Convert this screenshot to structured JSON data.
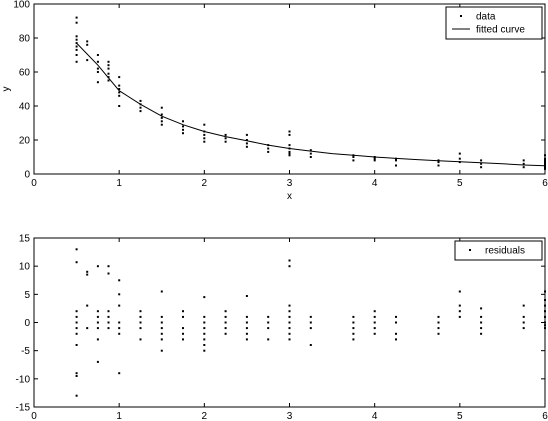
{
  "chart_data": [
    {
      "type": "scatter",
      "xlabel": "x",
      "ylabel": "y",
      "xlim": [
        0,
        6
      ],
      "ylim": [
        0,
        100
      ],
      "xticks": [
        0,
        1,
        2,
        3,
        4,
        5,
        6
      ],
      "yticks": [
        0,
        20,
        40,
        60,
        80,
        100
      ],
      "legend_position": "top-right",
      "grid": false,
      "series": [
        {
          "name": "data",
          "kind": "points",
          "points": [
            [
              0.5,
              92
            ],
            [
              0.5,
              89
            ],
            [
              0.5,
              81
            ],
            [
              0.5,
              79
            ],
            [
              0.5,
              77
            ],
            [
              0.5,
              75
            ],
            [
              0.5,
              73
            ],
            [
              0.5,
              70
            ],
            [
              0.5,
              66
            ],
            [
              0.625,
              78
            ],
            [
              0.625,
              76
            ],
            [
              0.625,
              67
            ],
            [
              0.75,
              70
            ],
            [
              0.75,
              66
            ],
            [
              0.75,
              62
            ],
            [
              0.75,
              60
            ],
            [
              0.75,
              54
            ],
            [
              0.875,
              66
            ],
            [
              0.875,
              64
            ],
            [
              0.875,
              62
            ],
            [
              0.875,
              59
            ],
            [
              0.875,
              57
            ],
            [
              0.875,
              55
            ],
            [
              1,
              57
            ],
            [
              1,
              52
            ],
            [
              1,
              50
            ],
            [
              1,
              48
            ],
            [
              1,
              46
            ],
            [
              1,
              40
            ],
            [
              1.25,
              43
            ],
            [
              1.25,
              41
            ],
            [
              1.25,
              39
            ],
            [
              1.25,
              37
            ],
            [
              1.5,
              39
            ],
            [
              1.5,
              35
            ],
            [
              1.5,
              33
            ],
            [
              1.5,
              31
            ],
            [
              1.5,
              29
            ],
            [
              1.75,
              31
            ],
            [
              1.75,
              28
            ],
            [
              1.75,
              26
            ],
            [
              1.75,
              24
            ],
            [
              2,
              29
            ],
            [
              2,
              25
            ],
            [
              2,
              23
            ],
            [
              2,
              21
            ],
            [
              2,
              19
            ],
            [
              2.25,
              23
            ],
            [
              2.25,
              21
            ],
            [
              2.25,
              19
            ],
            [
              2.5,
              23
            ],
            [
              2.5,
              20
            ],
            [
              2.5,
              18
            ],
            [
              2.5,
              16
            ],
            [
              2.75,
              17
            ],
            [
              2.75,
              15
            ],
            [
              2.75,
              13
            ],
            [
              3,
              25
            ],
            [
              3,
              23
            ],
            [
              3,
              17
            ],
            [
              3,
              15
            ],
            [
              3,
              13
            ],
            [
              3,
              12
            ],
            [
              3,
              11
            ],
            [
              3.25,
              14
            ],
            [
              3.25,
              12
            ],
            [
              3.25,
              10
            ],
            [
              3.75,
              11
            ],
            [
              3.75,
              10
            ],
            [
              3.75,
              8
            ],
            [
              4,
              10
            ],
            [
              4,
              9
            ],
            [
              4,
              8
            ],
            [
              4.25,
              9
            ],
            [
              4.25,
              8
            ],
            [
              4.25,
              5
            ],
            [
              4.75,
              8
            ],
            [
              4.75,
              7
            ],
            [
              4.75,
              5
            ],
            [
              5,
              12
            ],
            [
              5,
              9
            ],
            [
              5,
              7
            ],
            [
              5.25,
              8
            ],
            [
              5.25,
              6
            ],
            [
              5.25,
              4
            ],
            [
              5.75,
              8
            ],
            [
              5.75,
              6
            ],
            [
              5.75,
              4
            ],
            [
              6,
              11
            ],
            [
              6,
              9
            ],
            [
              6,
              8
            ],
            [
              6,
              7
            ],
            [
              6,
              6
            ],
            [
              6,
              5
            ],
            [
              6,
              4
            ],
            [
              6,
              3
            ]
          ]
        },
        {
          "name": "fitted curve",
          "kind": "line",
          "x": [
            0.5,
            0.75,
            1,
            1.25,
            1.5,
            1.75,
            2,
            2.25,
            2.5,
            2.75,
            3,
            3.25,
            3.5,
            3.75,
            4,
            4.25,
            4.5,
            4.75,
            5,
            5.25,
            5.5,
            5.75,
            6
          ],
          "y": [
            77,
            64,
            49,
            41,
            34,
            29,
            25,
            22,
            19.5,
            17,
            15,
            13.5,
            12,
            11,
            10,
            9.2,
            8.5,
            7.8,
            7.2,
            6.6,
            6,
            5.3,
            4.8
          ]
        }
      ]
    },
    {
      "type": "scatter",
      "xlabel": "",
      "ylabel": "",
      "xlim": [
        0,
        6
      ],
      "ylim": [
        -15,
        15
      ],
      "xticks": [
        0,
        1,
        2,
        3,
        4,
        5,
        6
      ],
      "yticks": [
        -15,
        -10,
        -5,
        0,
        5,
        10,
        15
      ],
      "legend_position": "top-right",
      "grid": false,
      "series": [
        {
          "name": "residuals",
          "kind": "points",
          "points": [
            [
              0.5,
              13
            ],
            [
              0.5,
              10.7
            ],
            [
              0.5,
              2
            ],
            [
              0.5,
              1
            ],
            [
              0.5,
              0
            ],
            [
              0.5,
              -1
            ],
            [
              0.5,
              -2
            ],
            [
              0.5,
              -4
            ],
            [
              0.5,
              -9
            ],
            [
              0.5,
              -9.5
            ],
            [
              0.5,
              -13
            ],
            [
              0.625,
              9
            ],
            [
              0.625,
              8.5
            ],
            [
              0.625,
              3
            ],
            [
              0.625,
              -1
            ],
            [
              0.75,
              10
            ],
            [
              0.75,
              2
            ],
            [
              0.75,
              1
            ],
            [
              0.75,
              0
            ],
            [
              0.75,
              -1
            ],
            [
              0.75,
              -3
            ],
            [
              0.75,
              -7
            ],
            [
              0.875,
              10
            ],
            [
              0.875,
              8.7
            ],
            [
              0.875,
              2
            ],
            [
              0.875,
              1
            ],
            [
              0.875,
              0
            ],
            [
              0.875,
              -1
            ],
            [
              1,
              7.5
            ],
            [
              1,
              5
            ],
            [
              1,
              3
            ],
            [
              1,
              0
            ],
            [
              1,
              -1
            ],
            [
              1,
              -2
            ],
            [
              1,
              -9
            ],
            [
              1.25,
              2
            ],
            [
              1.25,
              1
            ],
            [
              1.25,
              0
            ],
            [
              1.25,
              -1
            ],
            [
              1.25,
              -3
            ],
            [
              1.5,
              5.5
            ],
            [
              1.5,
              1
            ],
            [
              1.5,
              0
            ],
            [
              1.5,
              -1
            ],
            [
              1.5,
              -2
            ],
            [
              1.5,
              -3
            ],
            [
              1.5,
              -5
            ],
            [
              1.75,
              2
            ],
            [
              1.75,
              1
            ],
            [
              1.75,
              -1
            ],
            [
              1.75,
              -2
            ],
            [
              1.75,
              -3
            ],
            [
              2,
              4.5
            ],
            [
              2,
              1
            ],
            [
              2,
              0
            ],
            [
              2,
              -1
            ],
            [
              2,
              -2
            ],
            [
              2,
              -3
            ],
            [
              2,
              -4
            ],
            [
              2,
              -5
            ],
            [
              2.25,
              2
            ],
            [
              2.25,
              1
            ],
            [
              2.25,
              0
            ],
            [
              2.25,
              -1
            ],
            [
              2.25,
              -2
            ],
            [
              2.5,
              4.7
            ],
            [
              2.5,
              1
            ],
            [
              2.5,
              0
            ],
            [
              2.5,
              -1
            ],
            [
              2.5,
              -2
            ],
            [
              2.5,
              -3
            ],
            [
              2.75,
              1
            ],
            [
              2.75,
              0
            ],
            [
              2.75,
              -1
            ],
            [
              2.75,
              -3
            ],
            [
              3,
              11
            ],
            [
              3,
              10
            ],
            [
              3,
              3
            ],
            [
              3,
              2
            ],
            [
              3,
              1
            ],
            [
              3,
              0
            ],
            [
              3,
              -1
            ],
            [
              3,
              -2
            ],
            [
              3,
              -3
            ],
            [
              3.25,
              1
            ],
            [
              3.25,
              0
            ],
            [
              3.25,
              -1
            ],
            [
              3.25,
              -4
            ],
            [
              3.75,
              1
            ],
            [
              3.75,
              0
            ],
            [
              3.75,
              -1
            ],
            [
              3.75,
              -2
            ],
            [
              3.75,
              -3
            ],
            [
              4,
              2
            ],
            [
              4,
              1
            ],
            [
              4,
              0
            ],
            [
              4,
              -1
            ],
            [
              4,
              -2
            ],
            [
              4.25,
              1
            ],
            [
              4.25,
              0
            ],
            [
              4.25,
              -2
            ],
            [
              4.25,
              -3
            ],
            [
              4.75,
              1
            ],
            [
              4.75,
              0
            ],
            [
              4.75,
              -1
            ],
            [
              4.75,
              -2
            ],
            [
              5,
              5.5
            ],
            [
              5,
              3
            ],
            [
              5,
              2
            ],
            [
              5,
              1
            ],
            [
              5.25,
              2.5
            ],
            [
              5.25,
              1
            ],
            [
              5.25,
              0
            ],
            [
              5.25,
              -1
            ],
            [
              5.25,
              -2
            ],
            [
              5.75,
              3
            ],
            [
              5.75,
              1
            ],
            [
              5.75,
              0
            ],
            [
              5.75,
              -1
            ],
            [
              6,
              5.5
            ],
            [
              6,
              4
            ],
            [
              6,
              3
            ],
            [
              6,
              2
            ],
            [
              6,
              1
            ],
            [
              6,
              0
            ],
            [
              6,
              -0.5
            ],
            [
              6,
              -1
            ]
          ]
        }
      ]
    }
  ]
}
